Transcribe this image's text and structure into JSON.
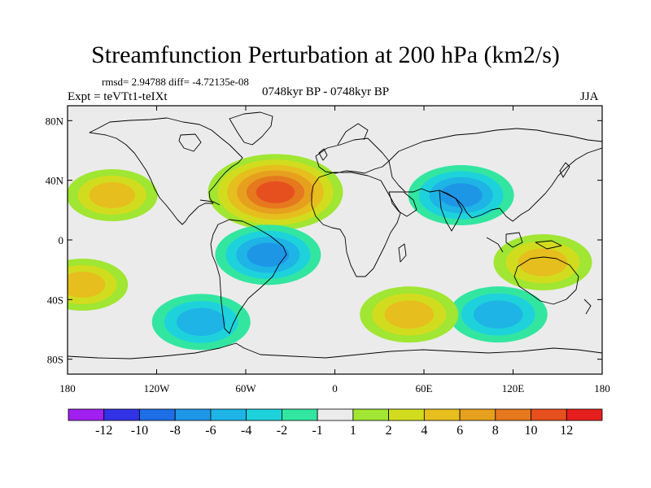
{
  "title": "Streamfunction Perturbation at 200 hPa (km2/s)",
  "stats": "rmsd= 2.94788 diff= -4.72135e-08",
  "experiment": "Expt = teVTt1-teIXt",
  "period": "0748kyr BP - 0748kyr BP",
  "season": "JJA",
  "chart_data": {
    "type": "heatmap",
    "projection": "cylindrical equidistant",
    "variable": "Streamfunction Perturbation",
    "level_hPa": 200,
    "units": "km2/s",
    "lon_range": [
      -180,
      180
    ],
    "lat_range": [
      -90,
      90
    ],
    "x_ticks": [
      {
        "value": -180,
        "label": "180"
      },
      {
        "value": -120,
        "label": "120W"
      },
      {
        "value": -60,
        "label": "60W"
      },
      {
        "value": 0,
        "label": "0"
      },
      {
        "value": 60,
        "label": "60E"
      },
      {
        "value": 120,
        "label": "120E"
      },
      {
        "value": 180,
        "label": "180"
      }
    ],
    "y_ticks": [
      {
        "value": 80,
        "label": "80N"
      },
      {
        "value": 40,
        "label": "40N"
      },
      {
        "value": 0,
        "label": "0"
      },
      {
        "value": -40,
        "label": "40S"
      },
      {
        "value": -80,
        "label": "80S"
      }
    ],
    "colorbar": {
      "labels": [
        "-12",
        "-10",
        "-8",
        "-6",
        "-4",
        "-2",
        "-1",
        "1",
        "2",
        "4",
        "6",
        "8",
        "10",
        "12"
      ],
      "colors": [
        "#a020f0",
        "#3232e6",
        "#1e6ee6",
        "#1e96e6",
        "#1eb4e6",
        "#1ed2dc",
        "#32e6a0",
        "#ebebeb",
        "#a0e632",
        "#d2dc1e",
        "#e6be1e",
        "#e6a01e",
        "#e6781e",
        "#e6501e",
        "#e61e1e"
      ]
    },
    "background_color": "#ebebeb",
    "features": [
      {
        "name": "N Atlantic maximum",
        "lon": -40,
        "lat": 32,
        "value": 10
      },
      {
        "name": "Asia minimum",
        "lon": 85,
        "lat": 30,
        "value": -6
      },
      {
        "name": "S America minimum",
        "lon": -45,
        "lat": -10,
        "value": -6
      },
      {
        "name": "S Pacific minimum",
        "lon": -90,
        "lat": -55,
        "value": -5
      },
      {
        "name": "S Indian minimum",
        "lon": 110,
        "lat": -50,
        "value": -5
      },
      {
        "name": "Australia maximum",
        "lon": 140,
        "lat": -15,
        "value": 5
      },
      {
        "name": "S Pacific maximum",
        "lon": -170,
        "lat": -30,
        "value": 4
      },
      {
        "name": "N Pacific maximum",
        "lon": -150,
        "lat": 30,
        "value": 4
      },
      {
        "name": "S Atlantic maximum",
        "lon": 50,
        "lat": -50,
        "value": 5
      }
    ]
  }
}
